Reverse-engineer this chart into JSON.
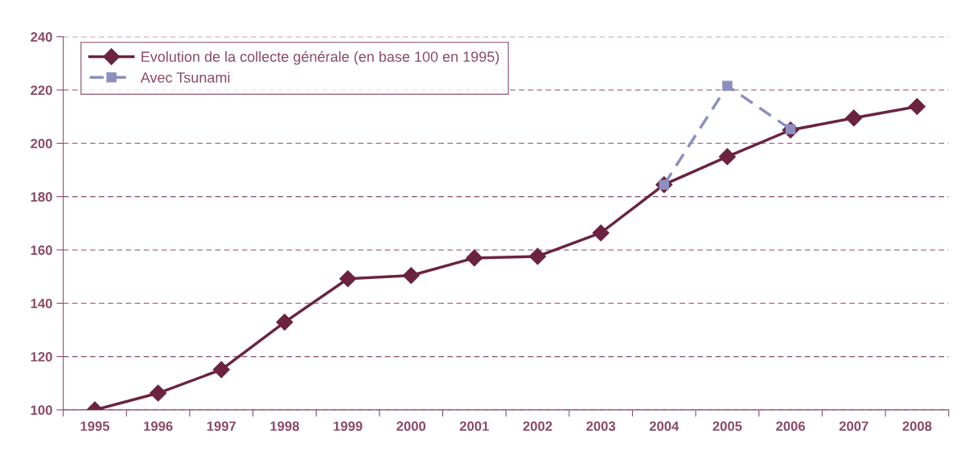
{
  "chart_data": {
    "type": "line",
    "categories": [
      "1995",
      "1996",
      "1997",
      "1998",
      "1999",
      "2000",
      "2001",
      "2002",
      "2003",
      "2004",
      "2005",
      "2006",
      "2007",
      "2008"
    ],
    "series": [
      {
        "name": "Evolution de la collecte générale (en base 100 en 1995)",
        "color": "#6b2340",
        "marker": "diamond",
        "line_style": "solid",
        "values": [
          100,
          106.3,
          115.1,
          132.9,
          149.2,
          150.4,
          157.0,
          157.6,
          166.4,
          184.5,
          195.0,
          205.0,
          209.5,
          213.8
        ]
      },
      {
        "name": "Avec Tsunami",
        "color": "#8c8fbf",
        "marker": "square",
        "line_style": "dashed",
        "values": [
          null,
          null,
          null,
          null,
          null,
          null,
          null,
          null,
          null,
          184.5,
          221.6,
          205.3,
          null,
          null
        ]
      }
    ],
    "ylim": [
      100,
      240
    ],
    "yticks": [
      100,
      120,
      140,
      160,
      180,
      200,
      220,
      240
    ],
    "grid": "y",
    "legend": "top left"
  }
}
